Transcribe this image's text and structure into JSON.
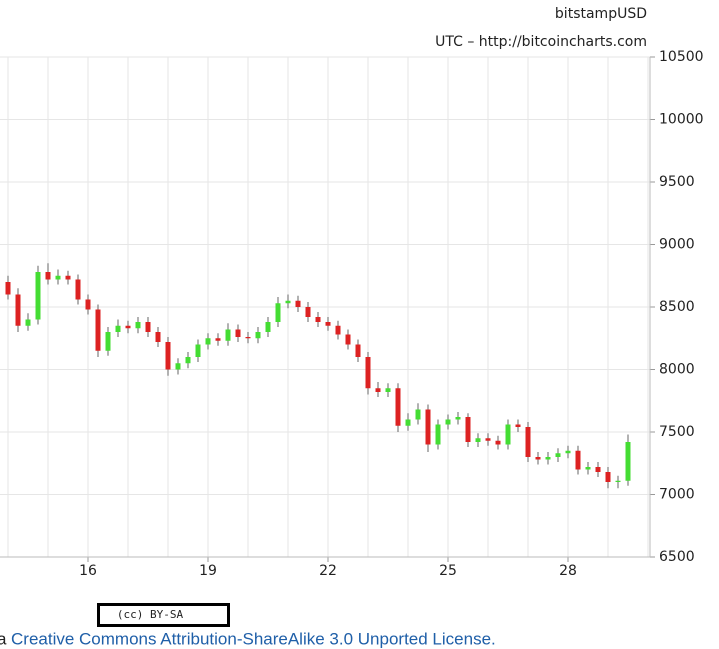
{
  "chart_data": {
    "type": "candlestick",
    "title": "bitstampUSD",
    "subtitle": "UTC – http://bitcoincharts.com",
    "x": [
      14,
      14.25,
      14.5,
      14.75,
      15,
      15.25,
      15.5,
      15.75,
      16,
      16.25,
      16.5,
      16.75,
      17,
      17.25,
      17.5,
      17.75,
      18,
      18.25,
      18.5,
      18.75,
      19,
      19.25,
      19.5,
      19.75,
      20,
      20.25,
      20.5,
      20.75,
      21,
      21.25,
      21.5,
      21.75,
      22,
      22.25,
      22.5,
      22.75,
      23,
      23.25,
      23.5,
      23.75,
      24,
      24.25,
      24.5,
      24.75,
      25,
      25.25,
      25.5,
      25.75,
      26,
      26.25,
      26.5,
      26.75,
      27,
      27.25,
      27.5,
      27.75,
      28,
      28.25,
      28.5,
      28.75,
      29,
      29.25,
      29.5
    ],
    "open": [
      8700,
      8600,
      8350,
      8400,
      8780,
      8720,
      8750,
      8720,
      8560,
      8480,
      8150,
      8300,
      8350,
      8330,
      8380,
      8300,
      8220,
      8000,
      8050,
      8100,
      8200,
      8250,
      8230,
      8320,
      8260,
      8250,
      8300,
      8380,
      8530,
      8550,
      8500,
      8420,
      8380,
      8350,
      8280,
      8200,
      8100,
      7850,
      7820,
      7850,
      7550,
      7600,
      7680,
      7400,
      7560,
      7600,
      7620,
      7420,
      7450,
      7430,
      7400,
      7560,
      7540,
      7300,
      7280,
      7300,
      7330,
      7350,
      7200,
      7220,
      7180,
      7100,
      7110
    ],
    "high": [
      8750,
      8650,
      8450,
      8830,
      8850,
      8800,
      8790,
      8760,
      8600,
      8520,
      8340,
      8400,
      8390,
      8420,
      8420,
      8340,
      8260,
      8090,
      8140,
      8240,
      8290,
      8290,
      8370,
      8360,
      8300,
      8340,
      8420,
      8580,
      8600,
      8590,
      8540,
      8460,
      8420,
      8390,
      8320,
      8240,
      8140,
      7900,
      7890,
      7890,
      7650,
      7730,
      7720,
      7600,
      7640,
      7660,
      7650,
      7490,
      7490,
      7470,
      7600,
      7600,
      7580,
      7340,
      7340,
      7370,
      7390,
      7390,
      7260,
      7260,
      7220,
      7150,
      7480
    ],
    "low": [
      8560,
      8300,
      8310,
      8360,
      8680,
      8680,
      8680,
      8520,
      8440,
      8100,
      8110,
      8260,
      8290,
      8290,
      8260,
      8180,
      7950,
      7960,
      8010,
      8060,
      8160,
      8190,
      8190,
      8220,
      8210,
      8210,
      8260,
      8340,
      8490,
      8460,
      8380,
      8340,
      8310,
      8240,
      8160,
      8060,
      7800,
      7780,
      7780,
      7500,
      7510,
      7560,
      7340,
      7360,
      7520,
      7560,
      7380,
      7380,
      7390,
      7360,
      7360,
      7500,
      7260,
      7240,
      7240,
      7260,
      7290,
      7160,
      7160,
      7140,
      7050,
      7050,
      7070
    ],
    "close": [
      8600,
      8350,
      8400,
      8780,
      8720,
      8750,
      8720,
      8560,
      8480,
      8150,
      8300,
      8350,
      8330,
      8380,
      8300,
      8220,
      8000,
      8050,
      8100,
      8200,
      8250,
      8230,
      8320,
      8260,
      8250,
      8300,
      8380,
      8530,
      8550,
      8500,
      8420,
      8380,
      8350,
      8280,
      8200,
      8100,
      7850,
      7820,
      7850,
      7550,
      7600,
      7680,
      7400,
      7560,
      7600,
      7620,
      7420,
      7450,
      7430,
      7400,
      7560,
      7540,
      7300,
      7280,
      7300,
      7330,
      7350,
      7200,
      7220,
      7180,
      7100,
      7110,
      7420
    ],
    "up_color": "#44dd33",
    "down_color": "#dd2222",
    "wick_color": "#666666",
    "xlim": [
      13.8,
      30.05
    ],
    "xticks": [
      16,
      19,
      22,
      25,
      28
    ],
    "xgrid_step": 1,
    "ylim": [
      6500,
      10500
    ],
    "yticks": [
      6500,
      7000,
      7500,
      8000,
      8500,
      9000,
      9500,
      10000,
      10500
    ],
    "grid": true
  },
  "footer": {
    "badge": "(cc) BY-SA",
    "prefix": "a",
    "link": "Creative Commons Attribution-ShareAlike 3.0 Unported License."
  }
}
